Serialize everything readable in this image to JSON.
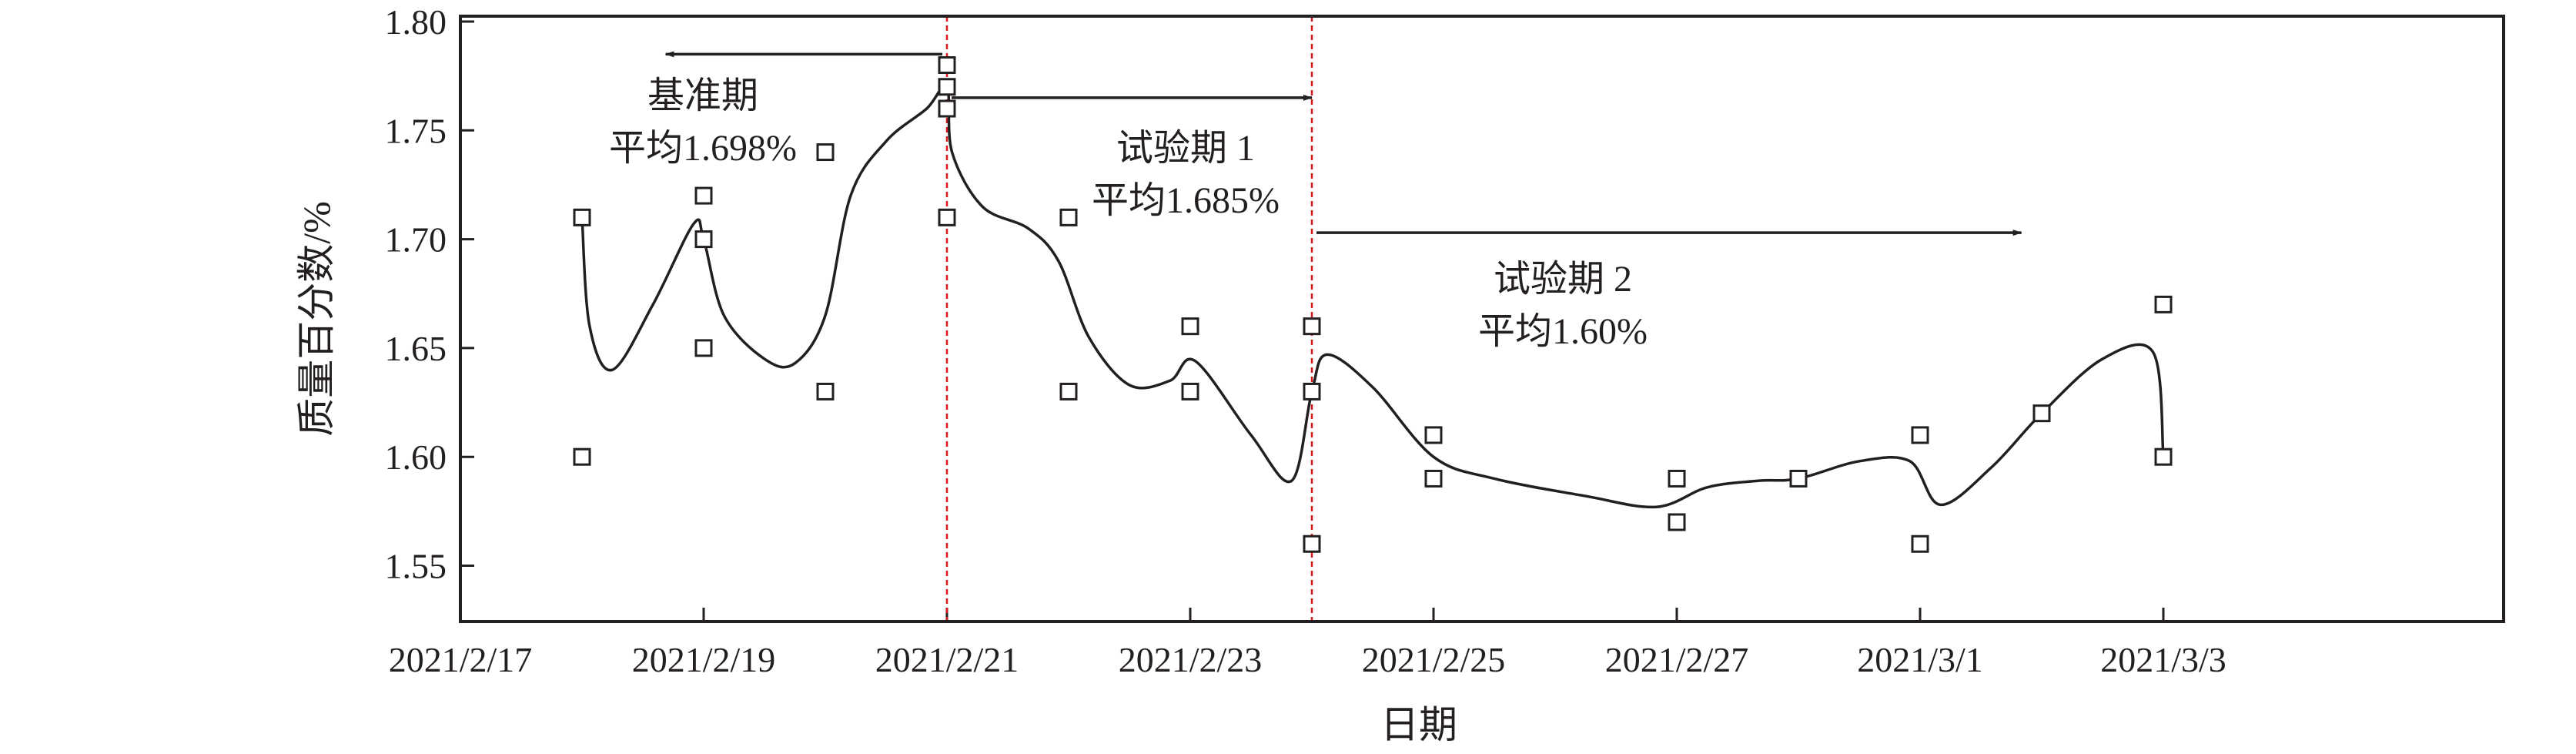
{
  "chart_data": {
    "type": "scatter",
    "xlabel": "日期",
    "ylabel": "质量百分数/%",
    "xlim": [
      "2021-02-17",
      "2021-03-05T19:00"
    ],
    "ylim": [
      1.524,
      1.8
    ],
    "x_ticks": [
      "2021/2/17",
      "2021/2/19",
      "2021/2/21",
      "2021/2/23",
      "2021/2/25",
      "2021/2/27",
      "2021/3/1",
      "2021/3/3"
    ],
    "x_tick_dates": [
      "2021-02-17",
      "2021-02-19",
      "2021-02-21",
      "2021-02-23",
      "2021-02-25",
      "2021-02-27",
      "2021-03-01",
      "2021-03-03"
    ],
    "y_ticks": [
      "1.55",
      "1.60",
      "1.65",
      "1.70",
      "1.75",
      "1.80"
    ],
    "grid": false,
    "colors": {
      "axis": "#231f20",
      "divider": "#d7191c",
      "marker": "#231f20"
    },
    "points": [
      {
        "x": "2021-02-18",
        "y": [
          1.71,
          1.6
        ]
      },
      {
        "x": "2021-02-19",
        "y": [
          1.72,
          1.7,
          1.65
        ]
      },
      {
        "x": "2021-02-20",
        "y": [
          1.74,
          1.63
        ]
      },
      {
        "x": "2021-02-21",
        "y": [
          1.78,
          1.77,
          1.76,
          1.71
        ]
      },
      {
        "x": "2021-02-22",
        "y": [
          1.71,
          1.63
        ]
      },
      {
        "x": "2021-02-23",
        "y": [
          1.66,
          1.63
        ]
      },
      {
        "x": "2021-02-24",
        "y": [
          1.66,
          1.63,
          1.56
        ]
      },
      {
        "x": "2021-02-25",
        "y": [
          1.61,
          1.59
        ]
      },
      {
        "x": "2021-02-27",
        "y": [
          1.59,
          1.57
        ]
      },
      {
        "x": "2021-02-28",
        "y": [
          1.59
        ]
      },
      {
        "x": "2021-03-01",
        "y": [
          1.61,
          1.56
        ]
      },
      {
        "x": "2021-03-02",
        "y": [
          1.62
        ]
      },
      {
        "x": "2021-03-03",
        "y": [
          1.67,
          1.6
        ]
      }
    ],
    "fit_curve": [
      [
        "2021-02-18T00:00",
        1.71
      ],
      [
        "2021-02-18T01:30",
        1.66
      ],
      [
        "2021-02-18T06:00",
        1.64
      ],
      [
        "2021-02-18T14:00",
        1.67
      ],
      [
        "2021-02-18T22:00",
        1.707
      ],
      [
        "2021-02-19T00:00",
        1.7
      ],
      [
        "2021-02-19T04:00",
        1.665
      ],
      [
        "2021-02-19T12:00",
        1.645
      ],
      [
        "2021-02-19T18:00",
        1.643
      ],
      [
        "2021-02-20T00:00",
        1.665
      ],
      [
        "2021-02-20T05:00",
        1.72
      ],
      [
        "2021-02-20T12:00",
        1.745
      ],
      [
        "2021-02-20T20:00",
        1.76
      ],
      [
        "2021-02-21T00:00",
        1.77
      ],
      [
        "2021-02-21T01:00",
        1.74
      ],
      [
        "2021-02-21T07:00",
        1.715
      ],
      [
        "2021-02-21T16:00",
        1.705
      ],
      [
        "2021-02-21T22:00",
        1.69
      ],
      [
        "2021-02-22T04:00",
        1.655
      ],
      [
        "2021-02-22T12:00",
        1.633
      ],
      [
        "2021-02-22T20:00",
        1.635
      ],
      [
        "2021-02-23T01:00",
        1.644
      ],
      [
        "2021-02-23T12:00",
        1.61
      ],
      [
        "2021-02-23T20:00",
        1.589
      ],
      [
        "2021-02-24T00:00",
        1.63
      ],
      [
        "2021-02-24T03:00",
        1.647
      ],
      [
        "2021-02-24T12:00",
        1.632
      ],
      [
        "2021-02-25T00:00",
        1.6
      ],
      [
        "2021-02-25T12:00",
        1.59
      ],
      [
        "2021-02-26T06:00",
        1.582
      ],
      [
        "2021-02-26T20:00",
        1.577
      ],
      [
        "2021-02-27T06:00",
        1.586
      ],
      [
        "2021-02-27T16:00",
        1.589
      ],
      [
        "2021-02-28T00:00",
        1.59
      ],
      [
        "2021-02-28T12:00",
        1.598
      ],
      [
        "2021-02-28T22:00",
        1.598
      ],
      [
        "2021-03-01T04:00",
        1.578
      ],
      [
        "2021-03-01T14:00",
        1.595
      ],
      [
        "2021-03-02T00:00",
        1.62
      ],
      [
        "2021-03-02T12:00",
        1.645
      ],
      [
        "2021-03-02T22:00",
        1.648
      ],
      [
        "2021-03-03T00:00",
        1.6
      ]
    ],
    "dividers": [
      "2021-02-21",
      "2021-02-24"
    ],
    "arrows": [
      {
        "from": "2021-02-21",
        "to": "2021-02-18T16:30",
        "y": 1.785
      },
      {
        "from": "2021-02-21",
        "to": "2021-02-24",
        "y": 1.765
      },
      {
        "from": "2021-02-24",
        "to": "2021-03-01T20:00",
        "y": 1.703
      }
    ],
    "annotations": [
      {
        "name": "baseline",
        "lines": [
          "基准期",
          "平均1.698%"
        ]
      },
      {
        "name": "trial-1",
        "lines": [
          "试验期 1",
          "平均1.685%"
        ]
      },
      {
        "name": "trial-2",
        "lines": [
          "试验期 2",
          "平均1.60%"
        ]
      }
    ]
  }
}
